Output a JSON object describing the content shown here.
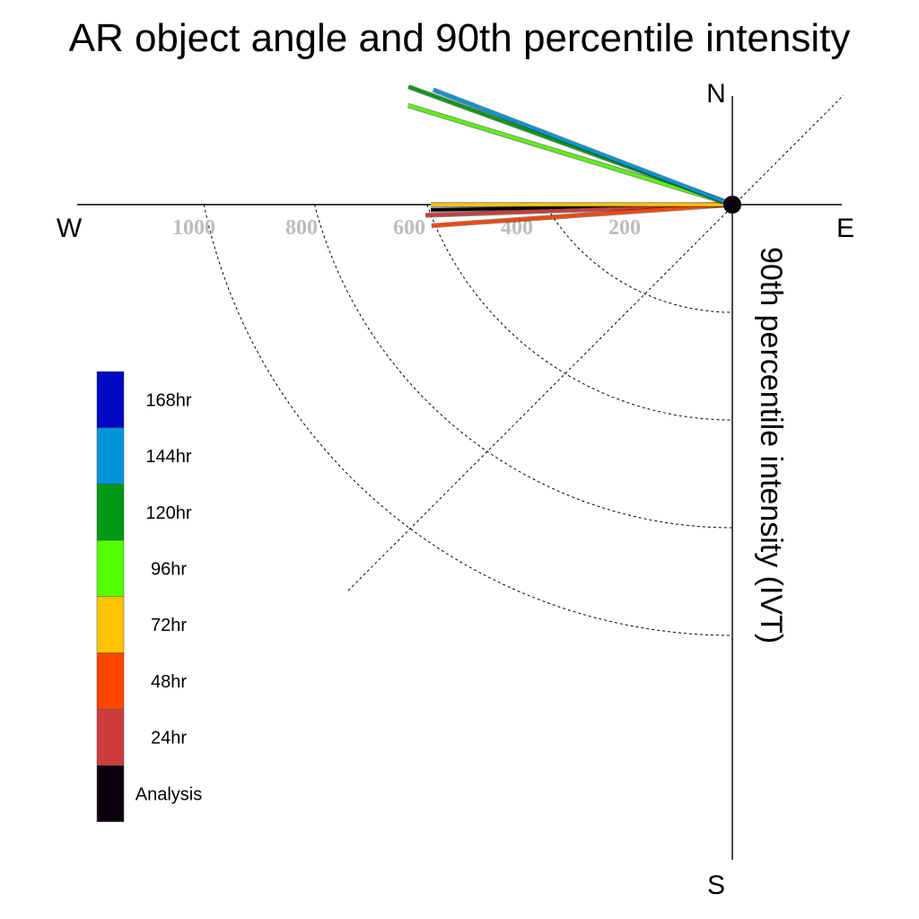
{
  "chart_data": {
    "type": "polar-vector",
    "title": "AR object angle and 90th percentile intensity",
    "radial_label": "90th percentile intensity (IVT)",
    "compass": {
      "north": "N",
      "south": "S",
      "east": "E",
      "west": "W"
    },
    "radial_ticks": [
      200,
      400,
      600,
      800,
      1000
    ],
    "radial_tick_labels": [
      "200",
      "400",
      "600",
      "800",
      "1000"
    ],
    "series": [
      {
        "name": "Analysis",
        "color": "#0b000b",
        "intensity": 560,
        "angle_deg": 181
      },
      {
        "name": "24hr",
        "color": "#cc3c3c",
        "intensity": 570,
        "angle_deg": 182
      },
      {
        "name": "48hr",
        "color": "#ff4500",
        "intensity": 560,
        "angle_deg": 184
      },
      {
        "name": "72hr",
        "color": "#ffc400",
        "intensity": 560,
        "angle_deg": 180
      },
      {
        "name": "96hr",
        "color": "#55ff00",
        "intensity": 630,
        "angle_deg": 163
      },
      {
        "name": "120hr",
        "color": "#009a14",
        "intensity": 640,
        "angle_deg": 160
      },
      {
        "name": "144hr",
        "color": "#0095da",
        "intensity": 595,
        "angle_deg": 159
      }
    ],
    "legend": {
      "placement": "left",
      "entries": [
        {
          "label": "168hr",
          "color": "#0008c4"
        },
        {
          "label": "144hr",
          "color": "#0095da"
        },
        {
          "label": "120hr",
          "color": "#009a14"
        },
        {
          "label": "96hr",
          "color": "#55ff00"
        },
        {
          "label": "72hr",
          "color": "#ffc400"
        },
        {
          "label": "48hr",
          "color": "#ff4500"
        },
        {
          "label": "24hr",
          "color": "#cc3c3c"
        },
        {
          "label": "Analysis",
          "color": "#0b000b"
        }
      ]
    }
  }
}
